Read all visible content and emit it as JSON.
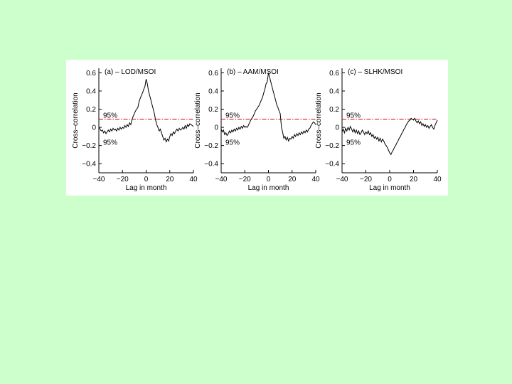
{
  "chart_data": [
    {
      "type": "line",
      "title": "(a) – LOD/MSOI",
      "xlabel": "Lag in month",
      "ylabel": "Cross–correlation",
      "xlim": [
        -40,
        40
      ],
      "ylim": [
        -0.5,
        0.65
      ],
      "xticks": [
        -40,
        -20,
        0,
        20,
        40
      ],
      "xtick_labels": [
        "−40",
        "−20",
        "0",
        "20",
        "40"
      ],
      "yticks": [
        -0.4,
        -0.2,
        0,
        0.2,
        0.4,
        0.6
      ],
      "ytick_labels": [
        "−0.4",
        "−0.2",
        "0",
        "0.2",
        "0.4",
        "0.6"
      ],
      "significance": {
        "value": 0.09,
        "upper_label": "95%",
        "lower_label": "95%"
      },
      "series": [
        {
          "name": "LOD/MSOI",
          "x": [
            -40,
            -39,
            -38,
            -37,
            -36,
            -35,
            -34,
            -33,
            -32,
            -31,
            -30,
            -29,
            -28,
            -27,
            -26,
            -25,
            -24,
            -23,
            -22,
            -21,
            -20,
            -19,
            -18,
            -17,
            -16,
            -15,
            -14,
            -13,
            -12,
            -11,
            -10,
            -9,
            -8,
            -7,
            -6,
            -5,
            -4,
            -3,
            -2,
            -1,
            0,
            1,
            2,
            3,
            4,
            5,
            6,
            7,
            8,
            9,
            10,
            11,
            12,
            13,
            14,
            15,
            16,
            17,
            18,
            19,
            20,
            21,
            22,
            23,
            24,
            25,
            26,
            27,
            28,
            29,
            30,
            31,
            32,
            33,
            34,
            35,
            36,
            37,
            38,
            39,
            40
          ],
          "values": [
            0.0,
            -0.02,
            -0.04,
            -0.03,
            -0.06,
            -0.04,
            -0.07,
            -0.05,
            -0.03,
            -0.05,
            -0.02,
            -0.04,
            -0.01,
            -0.03,
            -0.02,
            -0.04,
            -0.01,
            -0.03,
            0.0,
            -0.02,
            0.0,
            -0.01,
            0.02,
            0.0,
            0.03,
            0.01,
            0.05,
            0.03,
            0.08,
            0.12,
            0.15,
            0.18,
            0.2,
            0.22,
            0.28,
            0.32,
            0.35,
            0.38,
            0.42,
            0.45,
            0.53,
            0.48,
            0.4,
            0.35,
            0.3,
            0.25,
            0.2,
            0.15,
            0.08,
            0.03,
            0.0,
            -0.04,
            -0.02,
            -0.06,
            -0.1,
            -0.14,
            -0.12,
            -0.16,
            -0.13,
            -0.15,
            -0.1,
            -0.07,
            -0.09,
            -0.05,
            -0.07,
            -0.04,
            -0.02,
            -0.04,
            -0.01,
            -0.03,
            -0.02,
            0.0,
            -0.02,
            0.02,
            -0.01,
            0.03,
            0.01,
            0.04,
            0.03,
            0.02,
            0.01
          ]
        }
      ]
    },
    {
      "type": "line",
      "title": "(b) – AAM/MSOI",
      "xlabel": "Lag in month",
      "ylabel": "Cross–correlation",
      "xlim": [
        -40,
        40
      ],
      "ylim": [
        -0.5,
        0.65
      ],
      "xticks": [
        -40,
        -20,
        0,
        20,
        40
      ],
      "xtick_labels": [
        "−40",
        "−20",
        "0",
        "20",
        "40"
      ],
      "yticks": [
        -0.4,
        -0.2,
        0,
        0.2,
        0.4,
        0.6
      ],
      "ytick_labels": [
        "−0.4",
        "−0.2",
        "0",
        "0.2",
        "0.4",
        "0.6"
      ],
      "significance": {
        "value": 0.09,
        "upper_label": "95%",
        "lower_label": "95%"
      },
      "series": [
        {
          "name": "AAM/MSOI",
          "x": [
            -40,
            -39,
            -38,
            -37,
            -36,
            -35,
            -34,
            -33,
            -32,
            -31,
            -30,
            -29,
            -28,
            -27,
            -26,
            -25,
            -24,
            -23,
            -22,
            -21,
            -20,
            -19,
            -18,
            -17,
            -16,
            -15,
            -14,
            -13,
            -12,
            -11,
            -10,
            -9,
            -8,
            -7,
            -6,
            -5,
            -4,
            -3,
            -2,
            -1,
            0,
            1,
            2,
            3,
            4,
            5,
            6,
            7,
            8,
            9,
            10,
            11,
            12,
            13,
            14,
            15,
            16,
            17,
            18,
            19,
            20,
            21,
            22,
            23,
            24,
            25,
            26,
            27,
            28,
            29,
            30,
            31,
            32,
            33,
            34,
            35,
            36,
            37,
            38,
            39,
            40
          ],
          "values": [
            -0.02,
            -0.05,
            -0.03,
            -0.08,
            -0.06,
            -0.09,
            -0.07,
            -0.04,
            -0.06,
            -0.03,
            -0.05,
            -0.02,
            -0.04,
            -0.01,
            -0.03,
            0.0,
            -0.02,
            0.01,
            -0.01,
            0.02,
            0.0,
            0.01,
            0.0,
            0.02,
            0.05,
            0.08,
            0.1,
            0.12,
            0.15,
            0.18,
            0.2,
            0.22,
            0.24,
            0.27,
            0.3,
            0.33,
            0.38,
            0.42,
            0.48,
            0.5,
            0.6,
            0.55,
            0.5,
            0.45,
            0.4,
            0.35,
            0.3,
            0.25,
            0.22,
            0.18,
            0.15,
            0.0,
            -0.05,
            -0.12,
            -0.1,
            -0.14,
            -0.11,
            -0.15,
            -0.12,
            -0.13,
            -0.1,
            -0.12,
            -0.08,
            -0.1,
            -0.07,
            -0.09,
            -0.06,
            -0.08,
            -0.05,
            -0.07,
            -0.04,
            -0.06,
            -0.03,
            -0.05,
            -0.02,
            -0.01,
            0.02,
            0.04,
            0.06,
            0.05,
            0.03
          ]
        }
      ]
    },
    {
      "type": "line",
      "title": "(c) – SLHK/MSOI",
      "xlabel": "Lag in month",
      "ylabel": "Cross–correlation",
      "xlim": [
        -40,
        40
      ],
      "ylim": [
        -0.5,
        0.65
      ],
      "xticks": [
        -40,
        -20,
        0,
        20,
        40
      ],
      "xtick_labels": [
        "−40",
        "−20",
        "0",
        "20",
        "40"
      ],
      "yticks": [
        -0.4,
        -0.2,
        0,
        0.2,
        0.4,
        0.6
      ],
      "ytick_labels": [
        "−0.4",
        "−0.2",
        "0",
        "0.2",
        "0.4",
        "0.6"
      ],
      "significance": {
        "value": 0.09,
        "upper_label": "95%",
        "lower_label": "95%"
      },
      "series": [
        {
          "name": "SLHK/MSOI",
          "x": [
            -40,
            -39,
            -38,
            -37,
            -36,
            -35,
            -34,
            -33,
            -32,
            -31,
            -30,
            -29,
            -28,
            -27,
            -26,
            -25,
            -24,
            -23,
            -22,
            -21,
            -20,
            -19,
            -18,
            -17,
            -16,
            -15,
            -14,
            -13,
            -12,
            -11,
            -10,
            -9,
            -8,
            -7,
            -6,
            -5,
            -4,
            -3,
            -2,
            -1,
            0,
            1,
            2,
            3,
            4,
            5,
            6,
            7,
            8,
            9,
            10,
            11,
            12,
            13,
            14,
            15,
            16,
            17,
            18,
            19,
            20,
            21,
            22,
            23,
            24,
            25,
            26,
            27,
            28,
            29,
            30,
            31,
            32,
            33,
            34,
            35,
            36,
            37,
            38,
            39,
            40
          ],
          "values": [
            -0.05,
            -0.02,
            -0.06,
            -0.01,
            -0.04,
            0.0,
            -0.03,
            0.01,
            -0.02,
            -0.05,
            -0.02,
            -0.06,
            -0.03,
            -0.07,
            -0.04,
            -0.08,
            -0.06,
            -0.03,
            -0.05,
            -0.08,
            -0.05,
            -0.07,
            -0.04,
            -0.08,
            -0.06,
            -0.1,
            -0.08,
            -0.12,
            -0.1,
            -0.13,
            -0.11,
            -0.15,
            -0.12,
            -0.16,
            -0.13,
            -0.15,
            -0.18,
            -0.2,
            -0.22,
            -0.25,
            -0.28,
            -0.3,
            -0.27,
            -0.25,
            -0.22,
            -0.2,
            -0.17,
            -0.15,
            -0.12,
            -0.1,
            -0.07,
            -0.05,
            -0.02,
            0.0,
            0.03,
            0.05,
            0.07,
            0.08,
            0.1,
            0.09,
            0.08,
            0.1,
            0.07,
            0.05,
            0.07,
            0.04,
            0.06,
            0.02,
            0.04,
            0.01,
            0.03,
            0.0,
            0.02,
            -0.01,
            0.01,
            0.03,
            0.0,
            -0.02,
            0.02,
            0.05,
            0.08
          ]
        }
      ]
    }
  ]
}
